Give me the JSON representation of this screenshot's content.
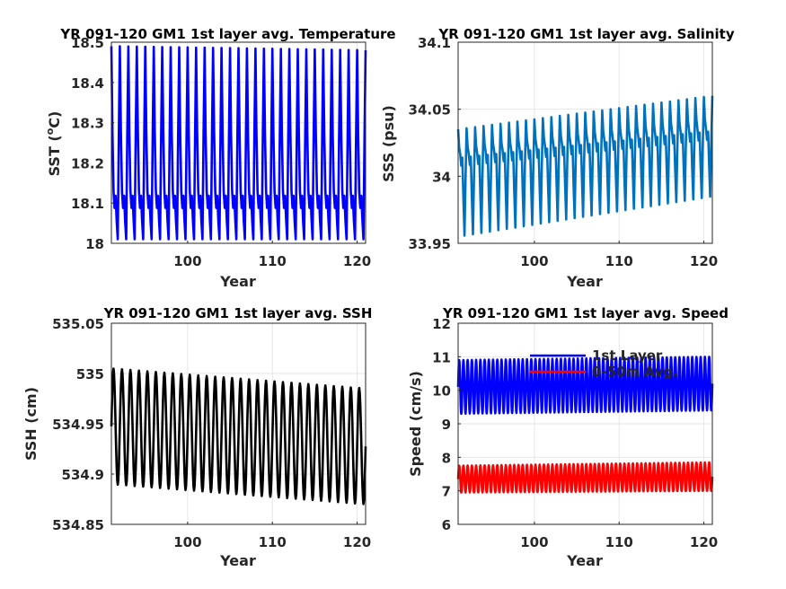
{
  "chart_data": [
    {
      "type": "line",
      "title": "YR 091-120 GM1 1st layer avg. Temperature",
      "xlabel": "Year",
      "ylabel": "SST (",
      "ylabel_sup": "o",
      "ylabel_tail": "C)",
      "xlim": [
        91,
        121
      ],
      "ylim": [
        18,
        18.5
      ],
      "xticks": [
        100,
        110,
        120
      ],
      "yticks": [
        18,
        18.1,
        18.2,
        18.3,
        18.4,
        18.5
      ],
      "ytick_labels": [
        "18",
        "18.1",
        "18.2",
        "18.3",
        "18.4",
        "18.5"
      ],
      "grid": true,
      "series": [
        {
          "color": "#0000ff",
          "kind": "seasonal",
          "x_start": 91,
          "x_end": 121,
          "cycles_per_year": 1,
          "max_start": 18.49,
          "max_end": 18.48,
          "min_start": 18.01,
          "min_end": 18.01,
          "mid_start": 18.1,
          "mid_end": 18.1,
          "mid_wiggle": 0.03
        }
      ]
    },
    {
      "type": "line",
      "title": "YR 091-120 GM1 1st layer avg. Salinity",
      "xlabel": "Year",
      "ylabel": "SSS (psu)",
      "xlim": [
        91,
        121
      ],
      "ylim": [
        33.95,
        34.1
      ],
      "xticks": [
        100,
        110,
        120
      ],
      "yticks": [
        33.95,
        34,
        34.05,
        34.1
      ],
      "ytick_labels": [
        "33.95",
        "34",
        "34.05",
        "34.1"
      ],
      "grid": true,
      "series": [
        {
          "color": "#0072bd",
          "kind": "seasonal",
          "x_start": 91,
          "x_end": 121,
          "cycles_per_year": 1,
          "max_start": 34.035,
          "max_end": 34.06,
          "min_start": 33.955,
          "min_end": 33.985,
          "mid_start": 34.01,
          "mid_end": 34.03,
          "mid_wiggle": 0.006
        }
      ]
    },
    {
      "type": "line",
      "title": "YR 091-120 GM1 1st layer avg. SSH",
      "xlabel": "Year",
      "ylabel": "SSH (cm)",
      "xlim": [
        91,
        121
      ],
      "ylim": [
        534.85,
        535.05
      ],
      "xticks": [
        100,
        110,
        120
      ],
      "yticks": [
        534.85,
        534.9,
        534.95,
        535,
        535.05
      ],
      "ytick_labels": [
        "534.85",
        "534.9",
        "534.95",
        "535",
        "535.05"
      ],
      "grid": true,
      "series": [
        {
          "color": "#000000",
          "kind": "oscillation",
          "x_start": 91,
          "x_end": 121,
          "cycles_per_year": 1,
          "max_start": 535.005,
          "max_end": 534.985,
          "min_start": 534.89,
          "min_end": 534.87
        }
      ]
    },
    {
      "type": "line",
      "title": "YR 091-120 GM1 1st layer avg. Speed",
      "xlabel": "Year",
      "ylabel": "Speed (cm/s)",
      "xlim": [
        91,
        121
      ],
      "ylim": [
        6,
        12
      ],
      "xticks": [
        100,
        110,
        120
      ],
      "yticks": [
        6,
        7,
        8,
        9,
        10,
        11,
        12
      ],
      "ytick_labels": [
        "6",
        "7",
        "8",
        "9",
        "10",
        "11",
        "12"
      ],
      "grid": true,
      "legend": {
        "position": "top-center",
        "entries": [
          "1st Layer",
          "0-50m Avg."
        ]
      },
      "series": [
        {
          "name": "1st Layer",
          "color": "#0000ff",
          "kind": "oscillation",
          "x_start": 91,
          "x_end": 121,
          "cycles_per_year": 2,
          "max_start": 10.9,
          "max_end": 11.0,
          "min_start": 9.3,
          "min_end": 9.4
        },
        {
          "name": "0-50m Avg.",
          "color": "#ff0000",
          "kind": "oscillation",
          "x_start": 91,
          "x_end": 121,
          "cycles_per_year": 2,
          "max_start": 7.75,
          "max_end": 7.85,
          "min_start": 6.95,
          "min_end": 7.0
        }
      ]
    }
  ]
}
